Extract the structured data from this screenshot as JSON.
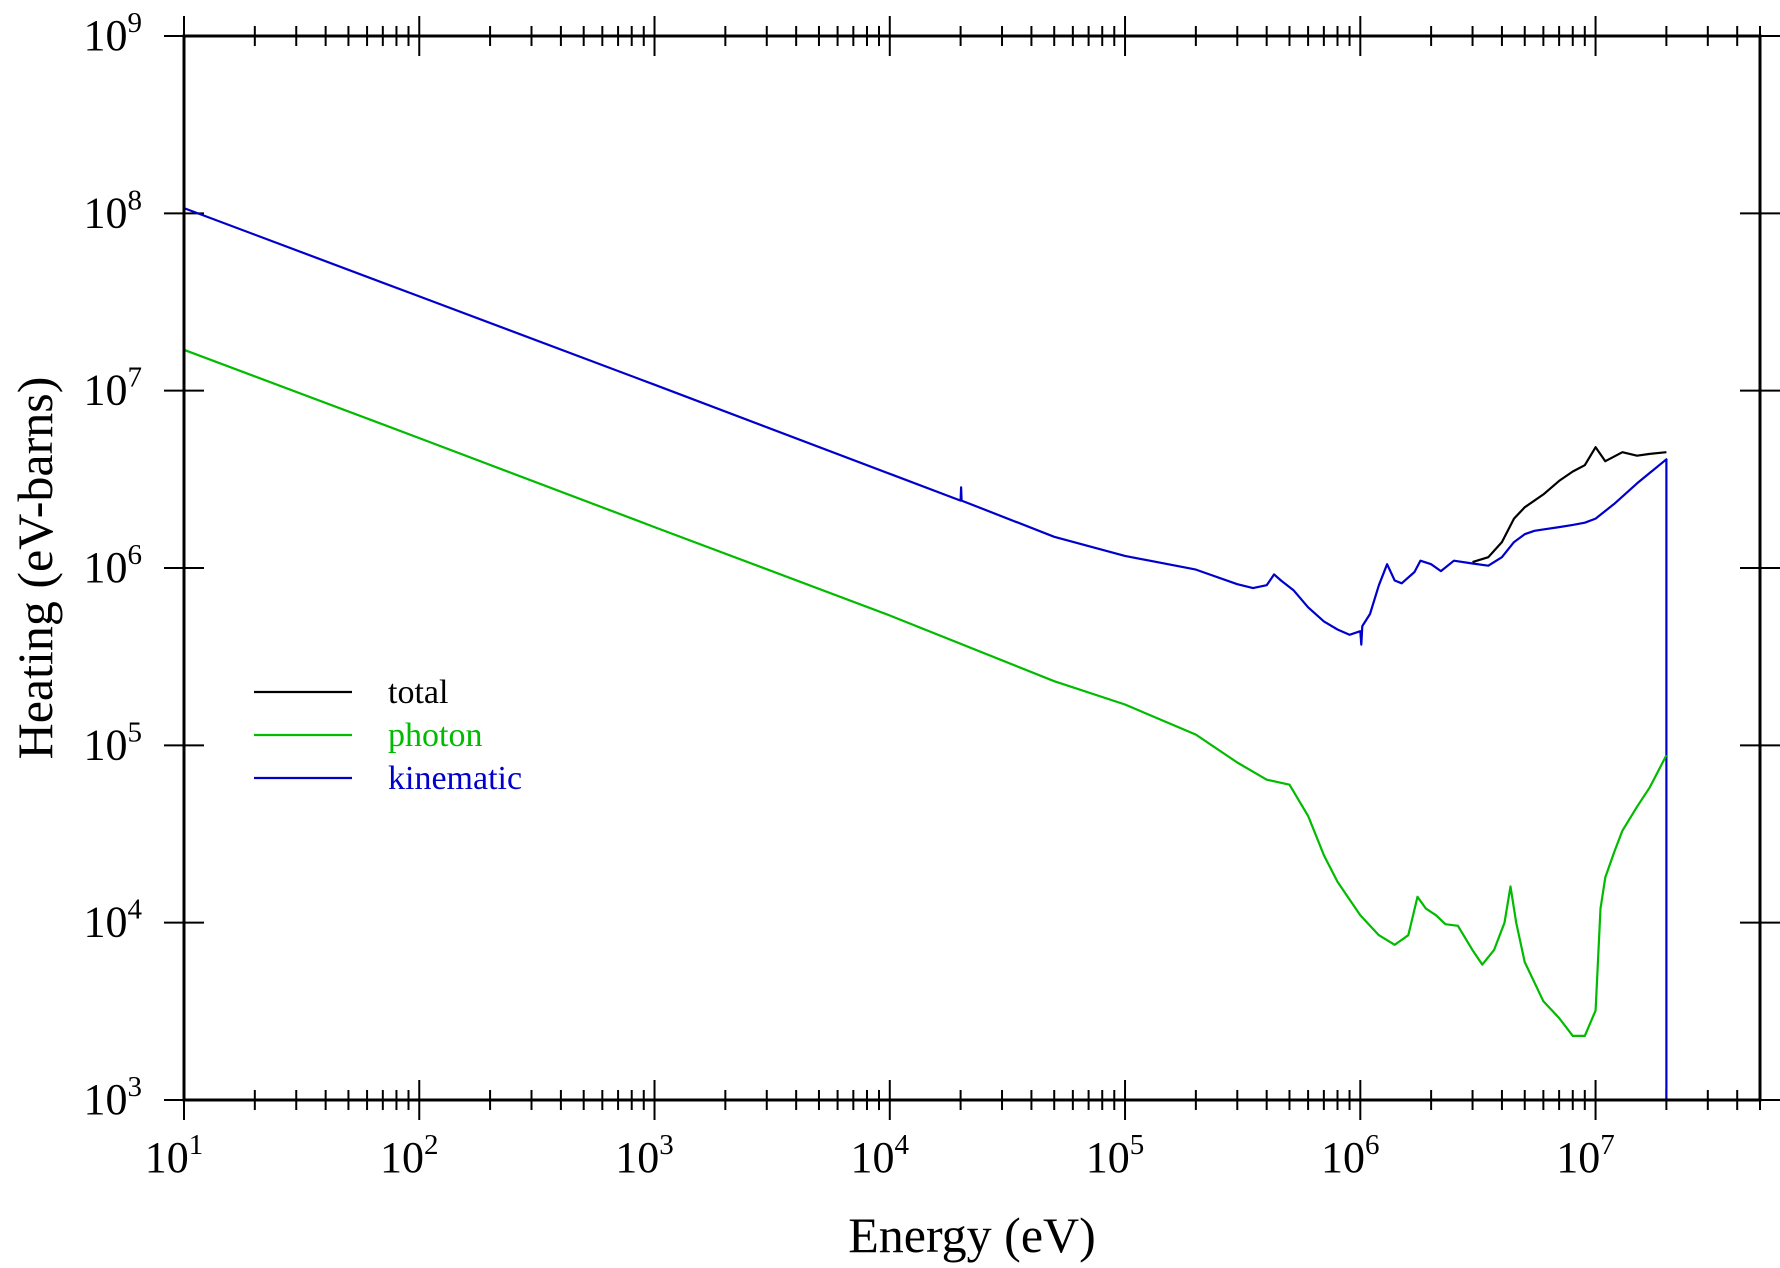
{
  "chart_data": {
    "type": "line",
    "title": "",
    "xlabel": "Energy (eV)",
    "ylabel": "Heating (eV-barns)",
    "xscale": "log",
    "yscale": "log",
    "xlim": [
      10,
      50000000
    ],
    "ylim": [
      1000,
      1000000000
    ],
    "x_ticks": [
      {
        "base": "10",
        "exp": "1",
        "value": 10
      },
      {
        "base": "10",
        "exp": "2",
        "value": 100
      },
      {
        "base": "10",
        "exp": "3",
        "value": 1000
      },
      {
        "base": "10",
        "exp": "4",
        "value": 10000
      },
      {
        "base": "10",
        "exp": "5",
        "value": 100000
      },
      {
        "base": "10",
        "exp": "6",
        "value": 1000000
      },
      {
        "base": "10",
        "exp": "7",
        "value": 10000000
      }
    ],
    "y_ticks": [
      {
        "base": "10",
        "exp": "3",
        "value": 1000
      },
      {
        "base": "10",
        "exp": "4",
        "value": 10000
      },
      {
        "base": "10",
        "exp": "5",
        "value": 100000
      },
      {
        "base": "10",
        "exp": "6",
        "value": 1000000
      },
      {
        "base": "10",
        "exp": "7",
        "value": 10000000
      },
      {
        "base": "10",
        "exp": "8",
        "value": 100000000
      },
      {
        "base": "10",
        "exp": "9",
        "value": 1000000000
      }
    ],
    "grid": false,
    "legend_position": "left-middle",
    "series": [
      {
        "name": "kinematic",
        "color": "#0000cc",
        "points": [
          [
            10,
            107000000
          ],
          [
            100,
            34000000
          ],
          [
            1000,
            10800000
          ],
          [
            10000,
            3400000
          ],
          [
            20000,
            2400000
          ],
          [
            20100,
            2850000
          ],
          [
            20200,
            2400000
          ],
          [
            50000,
            1500000
          ],
          [
            100000,
            1170000
          ],
          [
            200000,
            980000
          ],
          [
            300000,
            810000
          ],
          [
            350000,
            770000
          ],
          [
            400000,
            800000
          ],
          [
            430000,
            920000
          ],
          [
            460000,
            850000
          ],
          [
            520000,
            750000
          ],
          [
            600000,
            600000
          ],
          [
            700000,
            500000
          ],
          [
            800000,
            450000
          ],
          [
            900000,
            420000
          ],
          [
            1000000,
            440000
          ],
          [
            1010000,
            370000
          ],
          [
            1020000,
            470000
          ],
          [
            1100000,
            550000
          ],
          [
            1200000,
            800000
          ],
          [
            1300000,
            1050000
          ],
          [
            1400000,
            850000
          ],
          [
            1500000,
            820000
          ],
          [
            1700000,
            950000
          ],
          [
            1800000,
            1100000
          ],
          [
            2000000,
            1050000
          ],
          [
            2200000,
            960000
          ],
          [
            2500000,
            1100000
          ],
          [
            3000000,
            1060000
          ],
          [
            3500000,
            1030000
          ],
          [
            4000000,
            1150000
          ],
          [
            4500000,
            1400000
          ],
          [
            5000000,
            1550000
          ],
          [
            5500000,
            1620000
          ],
          [
            6000000,
            1650000
          ],
          [
            7000000,
            1700000
          ],
          [
            8000000,
            1750000
          ],
          [
            9000000,
            1800000
          ],
          [
            10000000,
            1900000
          ],
          [
            12000000,
            2300000
          ],
          [
            15000000,
            3000000
          ],
          [
            20000000,
            4100000
          ],
          [
            20000000,
            1000
          ]
        ]
      },
      {
        "name": "total",
        "color": "#000000",
        "points": [
          [
            3000000,
            1080000
          ],
          [
            3500000,
            1150000
          ],
          [
            4000000,
            1400000
          ],
          [
            4500000,
            1900000
          ],
          [
            5000000,
            2200000
          ],
          [
            6000000,
            2600000
          ],
          [
            7000000,
            3100000
          ],
          [
            8000000,
            3500000
          ],
          [
            9000000,
            3800000
          ],
          [
            10000000,
            4800000
          ],
          [
            11000000,
            4000000
          ],
          [
            13000000,
            4500000
          ],
          [
            15000000,
            4300000
          ],
          [
            17000000,
            4400000
          ],
          [
            20000000,
            4500000
          ]
        ]
      },
      {
        "name": "photon",
        "color": "#00bb00",
        "points": [
          [
            10,
            17000000
          ],
          [
            100,
            5400000
          ],
          [
            1000,
            1700000
          ],
          [
            10000,
            540000
          ],
          [
            50000,
            230000
          ],
          [
            100000,
            170000
          ],
          [
            200000,
            115000
          ],
          [
            300000,
            80000
          ],
          [
            400000,
            64000
          ],
          [
            500000,
            60000
          ],
          [
            600000,
            40000
          ],
          [
            700000,
            24000
          ],
          [
            800000,
            17000
          ],
          [
            1000000,
            11000
          ],
          [
            1200000,
            8500
          ],
          [
            1400000,
            7500
          ],
          [
            1600000,
            8500
          ],
          [
            1750000,
            14000
          ],
          [
            1900000,
            12000
          ],
          [
            2100000,
            11000
          ],
          [
            2300000,
            9800
          ],
          [
            2600000,
            9600
          ],
          [
            3000000,
            7000
          ],
          [
            3300000,
            5800
          ],
          [
            3700000,
            7000
          ],
          [
            4100000,
            10000
          ],
          [
            4350000,
            16000
          ],
          [
            4600000,
            10000
          ],
          [
            5000000,
            6000
          ],
          [
            6000000,
            3600
          ],
          [
            7000000,
            2900
          ],
          [
            8000000,
            2300
          ],
          [
            9000000,
            2300
          ],
          [
            10000000,
            3200
          ],
          [
            10500000,
            12000
          ],
          [
            11000000,
            18000
          ],
          [
            12000000,
            25000
          ],
          [
            13000000,
            33000
          ],
          [
            15000000,
            45000
          ],
          [
            17000000,
            58000
          ],
          [
            20000000,
            88000
          ]
        ]
      }
    ]
  },
  "legend": {
    "items": [
      {
        "label": "total",
        "color": "#000000"
      },
      {
        "label": "photon",
        "color": "#00bb00"
      },
      {
        "label": "kinematic",
        "color": "#0000cc"
      }
    ]
  }
}
